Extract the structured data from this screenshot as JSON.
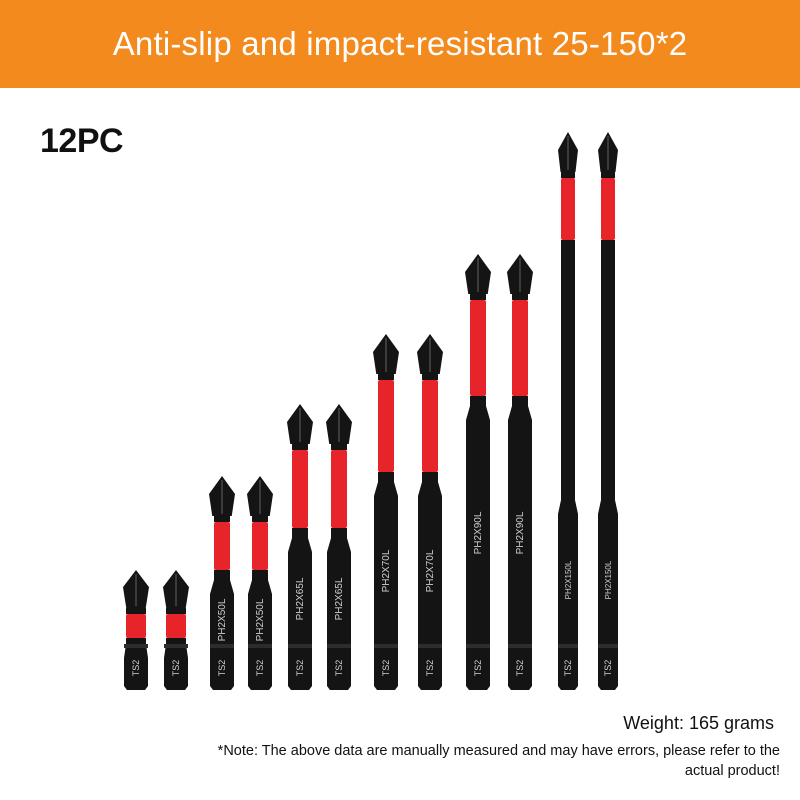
{
  "banner": {
    "title": "Anti-slip and impact-resistant 25-150*2",
    "color": "#f28a1e"
  },
  "count_label": "12PC",
  "colors": {
    "bit_body": "#141414",
    "anti_slip_band": "#e8242b"
  },
  "bits": [
    {
      "length_mm": 25,
      "marking": "",
      "hex_marking": "TS2",
      "icon": "phillips-tip"
    },
    {
      "length_mm": 25,
      "marking": "",
      "hex_marking": "TS2",
      "icon": "phillips-tip"
    },
    {
      "length_mm": 50,
      "marking": "PH2X50L",
      "hex_marking": "TS2",
      "icon": "phillips-tip"
    },
    {
      "length_mm": 50,
      "marking": "PH2X50L",
      "hex_marking": "TS2",
      "icon": "phillips-tip"
    },
    {
      "length_mm": 65,
      "marking": "PH2X65L",
      "hex_marking": "TS2",
      "icon": "phillips-tip"
    },
    {
      "length_mm": 65,
      "marking": "PH2X65L",
      "hex_marking": "TS2",
      "icon": "phillips-tip"
    },
    {
      "length_mm": 70,
      "marking": "PH2X70L",
      "hex_marking": "TS2",
      "icon": "phillips-tip"
    },
    {
      "length_mm": 70,
      "marking": "PH2X70L",
      "hex_marking": "TS2",
      "icon": "phillips-tip"
    },
    {
      "length_mm": 90,
      "marking": "PH2X90L",
      "hex_marking": "TS2",
      "icon": "phillips-tip"
    },
    {
      "length_mm": 90,
      "marking": "PH2X90L",
      "hex_marking": "TS2",
      "icon": "phillips-tip"
    },
    {
      "length_mm": 150,
      "marking": "PH2X150L",
      "hex_marking": "TS2",
      "icon": "phillips-tip"
    },
    {
      "length_mm": 150,
      "marking": "PH2X150L",
      "hex_marking": "TS2",
      "icon": "phillips-tip"
    }
  ],
  "weight": "Weight: 165 grams",
  "note_line1": "*Note: The above data are manually measured and may have errors, please refer to the",
  "note_line2": "actual product!"
}
